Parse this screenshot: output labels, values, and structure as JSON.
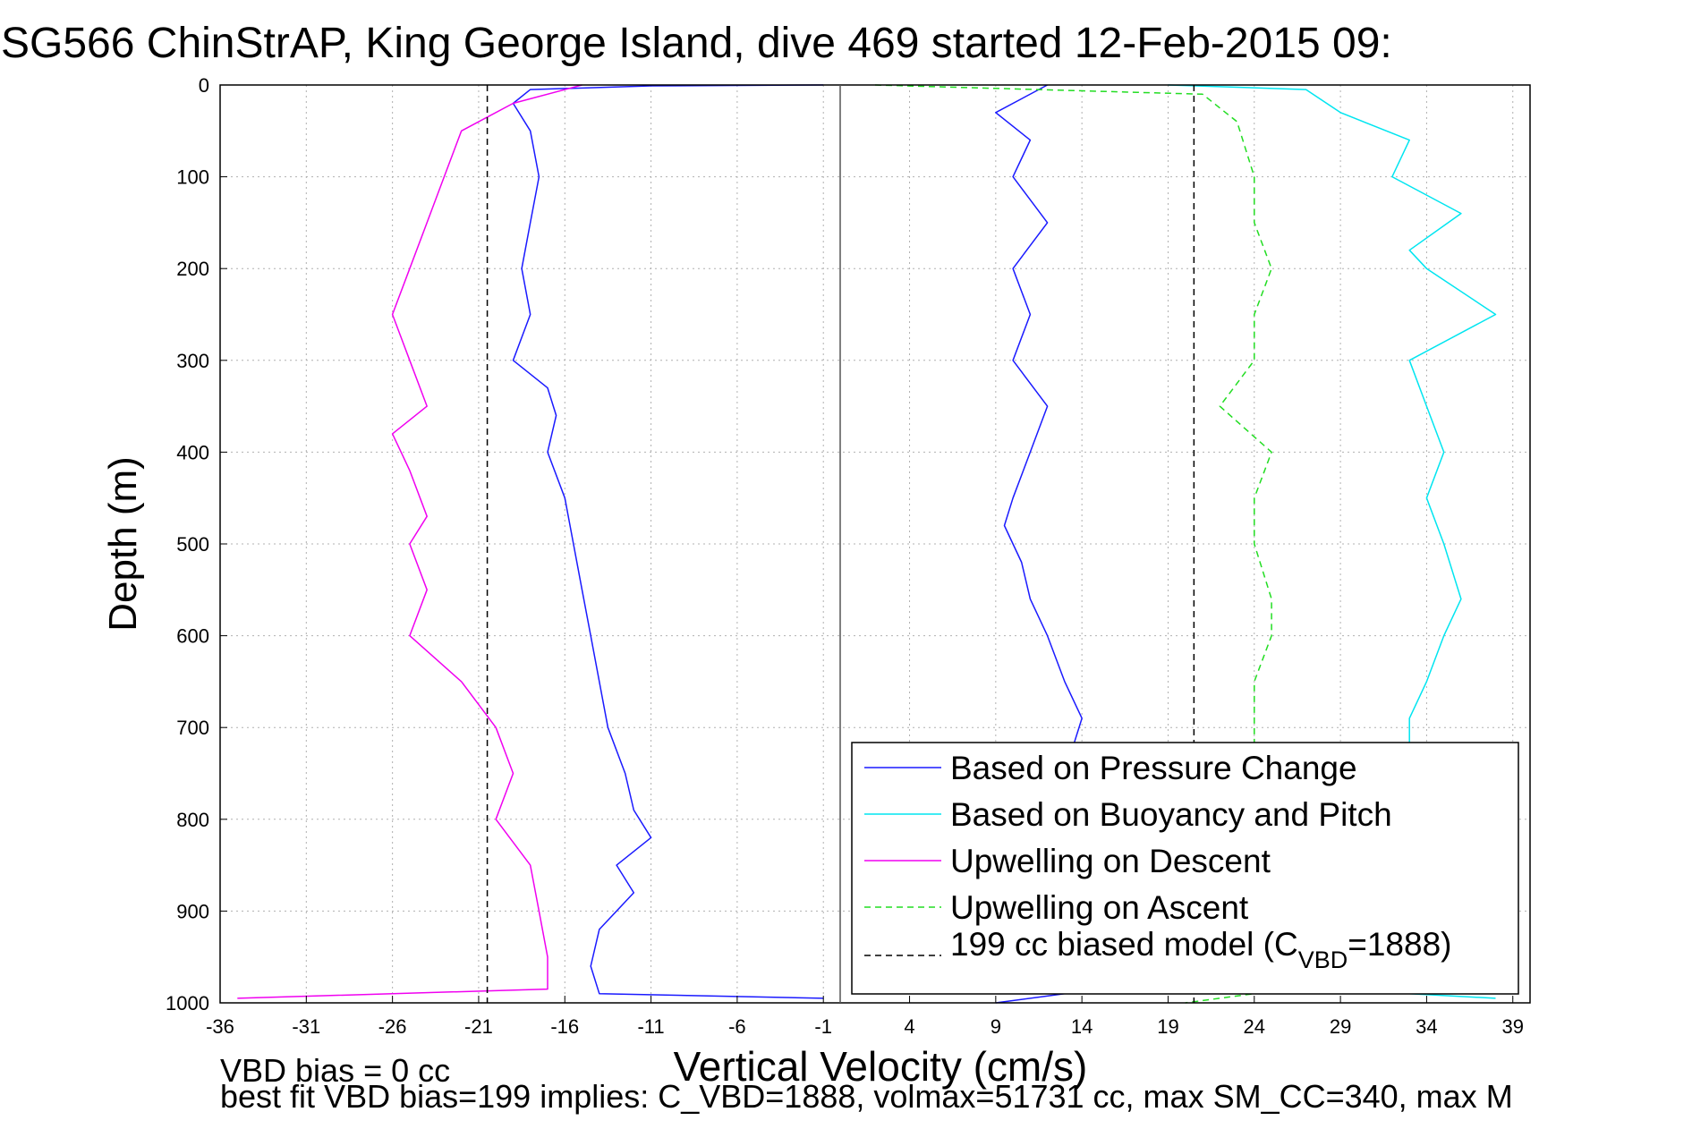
{
  "chart_data": {
    "type": "line",
    "title": "SG566 ChinStrAP, King George Island, dive 469 started 12-Feb-2015 09:",
    "xlabel": "Vertical Velocity (cm/s)",
    "ylabel": "Depth (m)",
    "xlim": [
      -36,
      40
    ],
    "ylim": [
      0,
      1000
    ],
    "y_reversed": true,
    "xticks": [
      -36,
      -31,
      -26,
      -21,
      -16,
      -11,
      -6,
      -1,
      4,
      9,
      14,
      19,
      24,
      29,
      34,
      39
    ],
    "yticks": [
      0,
      100,
      200,
      300,
      400,
      500,
      600,
      700,
      800,
      900,
      1000
    ],
    "grid": "dotted",
    "legend_position": "bottom-right",
    "zero_line_x": -0.6,
    "series": [
      {
        "name": "Based on Pressure Change",
        "color": "#1a1aff",
        "style": "solid",
        "side": "descent",
        "points": [
          [
            -1,
            0
          ],
          [
            -11,
            1
          ],
          [
            -18,
            5
          ],
          [
            -19,
            20
          ],
          [
            -18,
            50
          ],
          [
            -17.5,
            100
          ],
          [
            -18,
            150
          ],
          [
            -18.5,
            200
          ],
          [
            -18,
            250
          ],
          [
            -19,
            300
          ],
          [
            -17,
            330
          ],
          [
            -16.5,
            360
          ],
          [
            -17,
            400
          ],
          [
            -16,
            450
          ],
          [
            -15.5,
            500
          ],
          [
            -15,
            550
          ],
          [
            -14.5,
            600
          ],
          [
            -14,
            650
          ],
          [
            -13.5,
            700
          ],
          [
            -12.5,
            750
          ],
          [
            -12,
            790
          ],
          [
            -11,
            820
          ],
          [
            -13,
            850
          ],
          [
            -12,
            880
          ],
          [
            -14,
            920
          ],
          [
            -14.5,
            960
          ],
          [
            -14,
            990
          ],
          [
            -1,
            995
          ]
        ]
      },
      {
        "name": "Based on Pressure Change",
        "color": "#1a1aff",
        "style": "solid",
        "side": "ascent",
        "points": [
          [
            12,
            0
          ],
          [
            9,
            30
          ],
          [
            11,
            60
          ],
          [
            10,
            100
          ],
          [
            12,
            150
          ],
          [
            10,
            200
          ],
          [
            11,
            250
          ],
          [
            10,
            300
          ],
          [
            12,
            350
          ],
          [
            11,
            400
          ],
          [
            10,
            450
          ],
          [
            9.5,
            480
          ],
          [
            10.5,
            520
          ],
          [
            11,
            560
          ],
          [
            12,
            600
          ],
          [
            13,
            650
          ],
          [
            14,
            690
          ],
          [
            13.5,
            720
          ],
          [
            13,
            990
          ],
          [
            9,
            1000
          ]
        ]
      },
      {
        "name": "Based on Buoyancy and Pitch",
        "color": "#00e5f0",
        "style": "solid",
        "side": "ascent",
        "points": [
          [
            19,
            0
          ],
          [
            27,
            5
          ],
          [
            29,
            30
          ],
          [
            33,
            60
          ],
          [
            32,
            100
          ],
          [
            36,
            140
          ],
          [
            33,
            180
          ],
          [
            34,
            200
          ],
          [
            38,
            250
          ],
          [
            33,
            300
          ],
          [
            34,
            350
          ],
          [
            35,
            400
          ],
          [
            34,
            450
          ],
          [
            35,
            500
          ],
          [
            36,
            560
          ],
          [
            35,
            600
          ],
          [
            34,
            650
          ],
          [
            33,
            690
          ],
          [
            33,
            990
          ],
          [
            38,
            995
          ]
        ]
      },
      {
        "name": "Upwelling on Descent",
        "color": "#f000f0",
        "style": "solid",
        "side": "descent",
        "points": [
          [
            -15,
            0
          ],
          [
            -19,
            20
          ],
          [
            -22,
            50
          ],
          [
            -23,
            100
          ],
          [
            -24,
            150
          ],
          [
            -25,
            200
          ],
          [
            -26,
            250
          ],
          [
            -25,
            300
          ],
          [
            -24,
            350
          ],
          [
            -26,
            380
          ],
          [
            -25,
            420
          ],
          [
            -24,
            470
          ],
          [
            -25,
            500
          ],
          [
            -24,
            550
          ],
          [
            -25,
            600
          ],
          [
            -22,
            650
          ],
          [
            -20,
            700
          ],
          [
            -19,
            750
          ],
          [
            -20,
            800
          ],
          [
            -18,
            850
          ],
          [
            -17.5,
            900
          ],
          [
            -17,
            950
          ],
          [
            -17,
            985
          ],
          [
            -35,
            995
          ]
        ]
      },
      {
        "name": "Upwelling on Ascent",
        "color": "#22dd22",
        "style": "dashed",
        "side": "ascent",
        "points": [
          [
            2,
            0
          ],
          [
            21,
            10
          ],
          [
            23,
            40
          ],
          [
            24,
            100
          ],
          [
            24,
            150
          ],
          [
            25,
            200
          ],
          [
            24,
            250
          ],
          [
            24,
            300
          ],
          [
            22,
            350
          ],
          [
            25,
            400
          ],
          [
            24,
            450
          ],
          [
            24,
            500
          ],
          [
            25,
            560
          ],
          [
            25,
            600
          ],
          [
            24,
            650
          ],
          [
            24,
            690
          ],
          [
            24,
            990
          ],
          [
            20,
            1000
          ]
        ]
      },
      {
        "name": "199 cc biased model (C_VBD=1888)",
        "color": "#000000",
        "style": "dashed",
        "side": "reference",
        "points": [
          [
            -20.5,
            0
          ],
          [
            -20.5,
            1000
          ],
          [
            20.5,
            0
          ],
          [
            20.5,
            1000
          ]
        ]
      }
    ],
    "legend": {
      "entries": [
        {
          "label": "Based on Pressure Change",
          "color": "#1a1aff",
          "style": "solid"
        },
        {
          "label": "Based on Buoyancy and Pitch",
          "color": "#00e5f0",
          "style": "solid"
        },
        {
          "label": "Upwelling on Descent",
          "color": "#f000f0",
          "style": "solid"
        },
        {
          "label": "Upwelling on Ascent",
          "color": "#22dd22",
          "style": "dashed"
        },
        {
          "label_main": "199 cc biased model (C",
          "label_sub": "VBD",
          "label_tail": "=1888)",
          "color": "#000000",
          "style": "dashed"
        }
      ]
    },
    "annotations": {
      "vbd_bias": "VBD bias = 0 cc",
      "best_fit": "best fit VBD bias=199 implies: C_VBD=1888, volmax=51731 cc, max SM_CC=340, max M"
    }
  }
}
